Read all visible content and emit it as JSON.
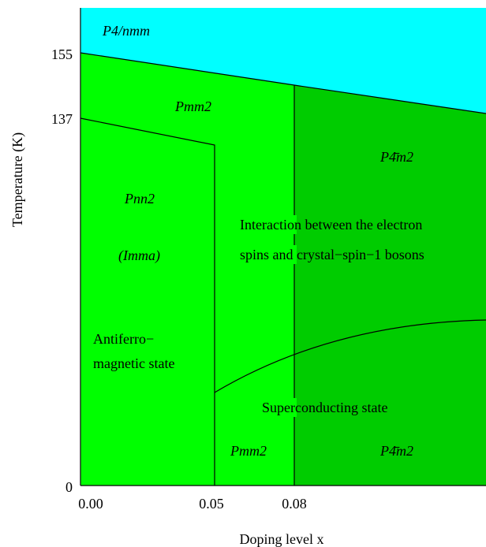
{
  "colors": {
    "tetragonal_region": "#00ffff",
    "orthorhombic_region": "#00ff00",
    "p4m2_region": "#00cc00",
    "boundary_line": "#000000"
  },
  "axes": {
    "xlabel": "Doping level x",
    "ylabel": "Temperature (K)",
    "x_ticks": [
      "0.00",
      "0.05",
      "0.08"
    ],
    "y_ticks": [
      "0",
      "137",
      "155"
    ]
  },
  "phases": {
    "top": "P4/nmm",
    "pmm2_upper": "Pmm2",
    "p4m2_upper": "P4̄m2",
    "pnn2": "Pnn2",
    "imma": "(Imma)",
    "pmm2_lower": "Pmm2",
    "p4m2_lower": "P4̄m2"
  },
  "annotations": {
    "interaction_line1": "Interaction between the electron",
    "interaction_line2": "spins and crystal−spin−1 bosons",
    "afm_line1": "Antiferro−",
    "afm_line2": "magnetic state",
    "sc": "Superconducting state"
  }
}
